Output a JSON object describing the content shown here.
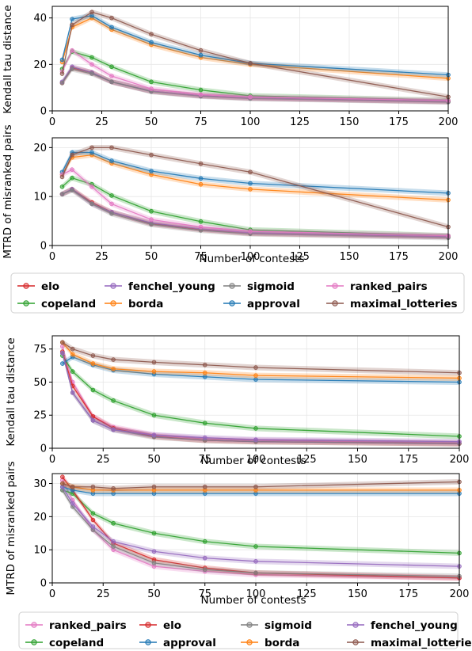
{
  "colors": {
    "elo": "#d62728",
    "copeland": "#2ca02c",
    "fenchel_young": "#9467bd",
    "borda": "#ff7f0e",
    "sigmoid": "#7f7f7f",
    "approval": "#1f77b4",
    "ranked_pairs": "#e377c2",
    "maximal_lotteries": "#8c564b"
  },
  "legend_top": [
    "elo",
    "copeland",
    "fenchel_young",
    "borda",
    "sigmoid",
    "approval",
    "ranked_pairs",
    "maximal_lotteries"
  ],
  "legend_bottom": [
    "ranked_pairs",
    "copeland",
    "elo",
    "approval",
    "sigmoid",
    "borda",
    "fenchel_young",
    "maximal_lotteries"
  ],
  "chart_data": [
    {
      "type": "line",
      "ylabel": "Kendall tau distance",
      "xlabel": "",
      "xlim": [
        0,
        200
      ],
      "ylim": [
        0,
        45
      ],
      "xticks": [
        "0",
        "25",
        "50",
        "75",
        "100",
        "125",
        "150",
        "175",
        "200"
      ],
      "yticks": [
        "0",
        "20",
        "40"
      ],
      "x": [
        5,
        10,
        20,
        30,
        50,
        75,
        100,
        200
      ],
      "series": [
        {
          "name": "elo",
          "values": [
            12,
            18.5,
            16.5,
            12.5,
            8.5,
            6.5,
            5.5,
            4.0
          ]
        },
        {
          "name": "copeland",
          "values": [
            18,
            25.5,
            23,
            19,
            12.5,
            9,
            6.5,
            4.5
          ]
        },
        {
          "name": "fenchel_young",
          "values": [
            12.5,
            19,
            16.5,
            12.5,
            8.5,
            6.5,
            5.5,
            4.0
          ]
        },
        {
          "name": "borda",
          "values": [
            21,
            36,
            40,
            35,
            28.5,
            23,
            20,
            14
          ]
        },
        {
          "name": "sigmoid",
          "values": [
            12,
            18,
            16,
            12.5,
            8.3,
            6.3,
            5.3,
            3.8
          ]
        },
        {
          "name": "approval",
          "values": [
            22,
            39.5,
            41,
            36,
            29.5,
            24,
            20.5,
            15.5
          ]
        },
        {
          "name": "ranked_pairs",
          "values": [
            17,
            26,
            20,
            15,
            9.5,
            7,
            6,
            4.5
          ]
        },
        {
          "name": "maximal_lotteries",
          "values": [
            16,
            37,
            42.5,
            40,
            33,
            26,
            20.5,
            6
          ]
        }
      ]
    },
    {
      "type": "line",
      "ylabel": "MTRD of misranked pairs",
      "xlabel": "Number of contests",
      "xlim": [
        0,
        200
      ],
      "ylim": [
        0,
        22
      ],
      "xticks": [
        "0",
        "25",
        "50",
        "75",
        "100",
        "125",
        "150",
        "175",
        "200"
      ],
      "yticks": [
        "0",
        "10",
        "20"
      ],
      "x": [
        5,
        10,
        20,
        30,
        50,
        75,
        100,
        200
      ],
      "series": [
        {
          "name": "elo",
          "values": [
            10.5,
            11.5,
            8.8,
            6.8,
            4.5,
            3.3,
            2.5,
            1.8
          ]
        },
        {
          "name": "copeland",
          "values": [
            12,
            13.8,
            12.5,
            10.2,
            7,
            4.9,
            3.2,
            2.0
          ]
        },
        {
          "name": "fenchel_young",
          "values": [
            10.5,
            11.5,
            8.5,
            6.8,
            4.6,
            3.4,
            2.6,
            1.8
          ]
        },
        {
          "name": "borda",
          "values": [
            14.5,
            18,
            18.5,
            16.8,
            14.5,
            12.5,
            11.5,
            9.3
          ]
        },
        {
          "name": "sigmoid",
          "values": [
            10.5,
            11.3,
            8.5,
            6.5,
            4.3,
            3.1,
            2.4,
            1.6
          ]
        },
        {
          "name": "approval",
          "values": [
            15,
            19,
            19,
            17.3,
            15.2,
            13.7,
            12.7,
            10.7
          ]
        },
        {
          "name": "ranked_pairs",
          "values": [
            14.5,
            15.5,
            12,
            8.5,
            5.3,
            3.8,
            2.9,
            2.0
          ]
        },
        {
          "name": "maximal_lotteries",
          "values": [
            14,
            18.5,
            20,
            20,
            18.5,
            16.7,
            15,
            3.8
          ]
        }
      ]
    },
    {
      "type": "line",
      "ylabel": "Kendall tau distance",
      "xlabel": "Number of contests",
      "xlim": [
        0,
        200
      ],
      "ylim": [
        0,
        85
      ],
      "xticks": [
        "0",
        "25",
        "50",
        "75",
        "100",
        "125",
        "150",
        "175",
        "200"
      ],
      "yticks": [
        "0",
        "25",
        "50",
        "75"
      ],
      "x": [
        5,
        10,
        20,
        30,
        50,
        75,
        100,
        200
      ],
      "series": [
        {
          "name": "ranked_pairs",
          "values": [
            77,
            50,
            24,
            16,
            10,
            7,
            6,
            4
          ]
        },
        {
          "name": "copeland",
          "values": [
            70,
            58,
            44,
            36,
            25,
            19,
            15,
            9
          ]
        },
        {
          "name": "elo",
          "values": [
            73,
            47,
            24,
            15,
            9,
            6,
            5,
            3.5
          ]
        },
        {
          "name": "approval",
          "values": [
            64,
            69,
            63,
            59,
            56,
            54,
            52,
            50
          ]
        },
        {
          "name": "sigmoid",
          "values": [
            72,
            42,
            21,
            14,
            8.5,
            6,
            5,
            3.5
          ]
        },
        {
          "name": "borda",
          "values": [
            80,
            71,
            64,
            60,
            58,
            57,
            55,
            53
          ]
        },
        {
          "name": "fenchel_young",
          "values": [
            72,
            42,
            21,
            14,
            10,
            8,
            6.5,
            5
          ]
        },
        {
          "name": "maximal_lotteries",
          "values": [
            80,
            75,
            70,
            67,
            65,
            63,
            61,
            57
          ]
        }
      ]
    },
    {
      "type": "line",
      "ylabel": "MTRD of misranked pairs",
      "xlabel": "Number of contests",
      "xlim": [
        0,
        200
      ],
      "ylim": [
        0,
        33
      ],
      "xticks": [
        "0",
        "25",
        "50",
        "75",
        "100",
        "125",
        "150",
        "175",
        "200"
      ],
      "yticks": [
        "0",
        "10",
        "20",
        "30"
      ],
      "x": [
        5,
        10,
        20,
        30,
        50,
        75,
        100,
        200
      ],
      "series": [
        {
          "name": "ranked_pairs",
          "values": [
            31,
            25,
            16,
            10,
            5,
            3.5,
            2.5,
            1.5
          ]
        },
        {
          "name": "copeland",
          "values": [
            28,
            27,
            21,
            18,
            15,
            12.5,
            11,
            9
          ]
        },
        {
          "name": "elo",
          "values": [
            32,
            28,
            19,
            12,
            7,
            4.5,
            3,
            1.5
          ]
        },
        {
          "name": "approval",
          "values": [
            29,
            28,
            27,
            27,
            27,
            27,
            27,
            27
          ]
        },
        {
          "name": "sigmoid",
          "values": [
            28,
            23,
            16,
            11,
            6,
            4,
            3,
            2
          ]
        },
        {
          "name": "borda",
          "values": [
            30,
            29,
            28,
            28,
            28,
            28,
            28,
            28
          ]
        },
        {
          "name": "fenchel_young",
          "values": [
            29,
            24,
            17,
            12.5,
            9.5,
            7.5,
            6.5,
            5
          ]
        },
        {
          "name": "maximal_lotteries",
          "values": [
            30,
            29,
            29,
            28.5,
            29,
            29,
            29,
            30.5
          ]
        }
      ]
    }
  ]
}
